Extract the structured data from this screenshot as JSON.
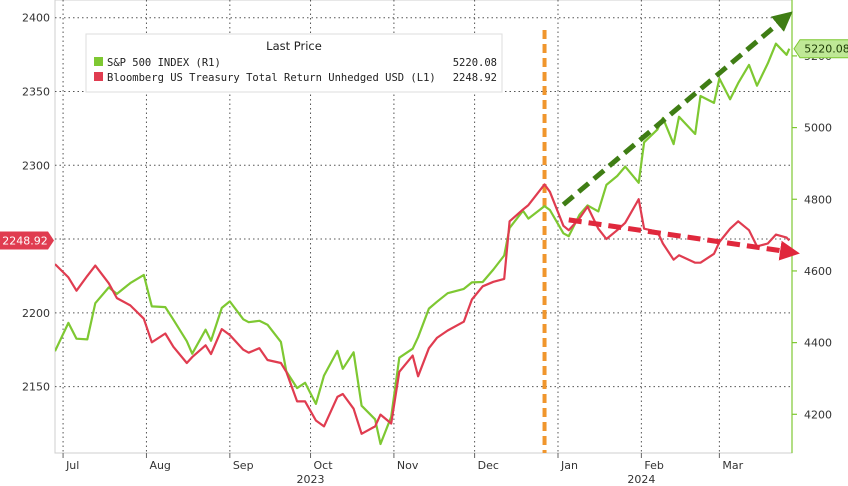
{
  "chart_data": {
    "type": "line",
    "title": "",
    "xlabel": "",
    "legend": {
      "title": "Last Price",
      "placement": "top-left",
      "entries": [
        {
          "label": "S&P 500 INDEX  (R1)",
          "value": "5220.08",
          "color": "#7ec832"
        },
        {
          "label": "Bloomberg US Treasury Total Return Unhedged USD  (L1)",
          "value": "2248.92",
          "color": "#e03c50"
        }
      ]
    },
    "x_ticks": [
      {
        "label": "Jul",
        "date": "2023-07-01"
      },
      {
        "label": "Aug",
        "date": "2023-08-01"
      },
      {
        "label": "Sep",
        "date": "2023-09-01"
      },
      {
        "label": "Oct",
        "date": "2023-10-01"
      },
      {
        "label": "Nov",
        "date": "2023-11-01"
      },
      {
        "label": "Dec",
        "date": "2023-12-01"
      },
      {
        "label": "Jan",
        "date": "2024-01-01"
      },
      {
        "label": "Feb",
        "date": "2024-02-01"
      },
      {
        "label": "Mar",
        "date": "2024-03-01"
      }
    ],
    "x_year_labels": [
      {
        "label": "2023",
        "date": "2023-10-01"
      },
      {
        "label": "2024",
        "date": "2024-02-01"
      }
    ],
    "xlim": [
      "2023-06-28",
      "2024-03-28"
    ],
    "left_axis": {
      "ylim": [
        2105,
        2412
      ],
      "ticks": [
        2150,
        2200,
        2250,
        2300,
        2350,
        2400
      ]
    },
    "right_axis": {
      "ylim": [
        4092,
        5356
      ],
      "ticks": [
        4200,
        4400,
        4600,
        4800,
        5000,
        5200
      ]
    },
    "grid": true,
    "series": [
      {
        "name": "S&P 500 INDEX",
        "axis": "right",
        "color": "#7ec832",
        "last_value": "5220.08",
        "points": [
          [
            "2023-06-28",
            4376
          ],
          [
            "2023-07-03",
            4455
          ],
          [
            "2023-07-06",
            4411
          ],
          [
            "2023-07-10",
            4409
          ],
          [
            "2023-07-13",
            4510
          ],
          [
            "2023-07-18",
            4554
          ],
          [
            "2023-07-21",
            4536
          ],
          [
            "2023-07-26",
            4566
          ],
          [
            "2023-07-31",
            4589
          ],
          [
            "2023-08-03",
            4501
          ],
          [
            "2023-08-08",
            4499
          ],
          [
            "2023-08-11",
            4464
          ],
          [
            "2023-08-16",
            4404
          ],
          [
            "2023-08-18",
            4369
          ],
          [
            "2023-08-23",
            4436
          ],
          [
            "2023-08-25",
            4405
          ],
          [
            "2023-08-29",
            4497
          ],
          [
            "2023-09-01",
            4515
          ],
          [
            "2023-09-06",
            4465
          ],
          [
            "2023-09-08",
            4457
          ],
          [
            "2023-09-12",
            4461
          ],
          [
            "2023-09-15",
            4450
          ],
          [
            "2023-09-20",
            4402
          ],
          [
            "2023-09-22",
            4320
          ],
          [
            "2023-09-26",
            4273
          ],
          [
            "2023-09-29",
            4288
          ],
          [
            "2023-10-03",
            4229
          ],
          [
            "2023-10-06",
            4308
          ],
          [
            "2023-10-11",
            4377
          ],
          [
            "2023-10-13",
            4327
          ],
          [
            "2023-10-17",
            4373
          ],
          [
            "2023-10-20",
            4224
          ],
          [
            "2023-10-25",
            4186
          ],
          [
            "2023-10-27",
            4117
          ],
          [
            "2023-10-31",
            4193
          ],
          [
            "2023-11-03",
            4358
          ],
          [
            "2023-11-08",
            4383
          ],
          [
            "2023-11-10",
            4415
          ],
          [
            "2023-11-14",
            4495
          ],
          [
            "2023-11-17",
            4514
          ],
          [
            "2023-11-21",
            4538
          ],
          [
            "2023-11-27",
            4550
          ],
          [
            "2023-11-30",
            4568
          ],
          [
            "2023-12-04",
            4569
          ],
          [
            "2023-12-08",
            4604
          ],
          [
            "2023-12-12",
            4643
          ],
          [
            "2023-12-14",
            4720
          ],
          [
            "2023-12-19",
            4768
          ],
          [
            "2023-12-21",
            4746
          ],
          [
            "2023-12-27",
            4781
          ],
          [
            "2023-12-29",
            4770
          ],
          [
            "2024-01-03",
            4705
          ],
          [
            "2024-01-05",
            4697
          ],
          [
            "2024-01-09",
            4757
          ],
          [
            "2024-01-12",
            4783
          ],
          [
            "2024-01-16",
            4766
          ],
          [
            "2024-01-19",
            4840
          ],
          [
            "2024-01-23",
            4865
          ],
          [
            "2024-01-26",
            4891
          ],
          [
            "2024-01-31",
            4846
          ],
          [
            "2024-02-02",
            4959
          ],
          [
            "2024-02-07",
            4995
          ],
          [
            "2024-02-09",
            5027
          ],
          [
            "2024-02-13",
            4954
          ],
          [
            "2024-02-15",
            5030
          ],
          [
            "2024-02-21",
            4982
          ],
          [
            "2024-02-23",
            5088
          ],
          [
            "2024-02-28",
            5069
          ],
          [
            "2024-03-01",
            5137
          ],
          [
            "2024-03-05",
            5079
          ],
          [
            "2024-03-08",
            5124
          ],
          [
            "2024-03-12",
            5175
          ],
          [
            "2024-03-15",
            5117
          ],
          [
            "2024-03-19",
            5179
          ],
          [
            "2024-03-22",
            5234
          ],
          [
            "2024-03-26",
            5203
          ],
          [
            "2024-03-27",
            5220
          ]
        ]
      },
      {
        "name": "Bloomberg US Treasury Total Return Unhedged USD",
        "axis": "left",
        "color": "#e03c50",
        "last_value": "2248.92",
        "points": [
          [
            "2023-06-28",
            2233
          ],
          [
            "2023-07-03",
            2224
          ],
          [
            "2023-07-06",
            2215
          ],
          [
            "2023-07-10",
            2225
          ],
          [
            "2023-07-13",
            2232
          ],
          [
            "2023-07-18",
            2220
          ],
          [
            "2023-07-21",
            2210
          ],
          [
            "2023-07-26",
            2205
          ],
          [
            "2023-07-31",
            2196
          ],
          [
            "2023-08-03",
            2180
          ],
          [
            "2023-08-08",
            2186
          ],
          [
            "2023-08-11",
            2177
          ],
          [
            "2023-08-16",
            2166
          ],
          [
            "2023-08-18",
            2170
          ],
          [
            "2023-08-23",
            2178
          ],
          [
            "2023-08-25",
            2172
          ],
          [
            "2023-08-29",
            2189
          ],
          [
            "2023-09-01",
            2185
          ],
          [
            "2023-09-06",
            2175
          ],
          [
            "2023-09-08",
            2173
          ],
          [
            "2023-09-12",
            2176
          ],
          [
            "2023-09-15",
            2168
          ],
          [
            "2023-09-20",
            2166
          ],
          [
            "2023-09-22",
            2160
          ],
          [
            "2023-09-26",
            2140
          ],
          [
            "2023-09-29",
            2140
          ],
          [
            "2023-10-03",
            2127
          ],
          [
            "2023-10-06",
            2123
          ],
          [
            "2023-10-11",
            2143
          ],
          [
            "2023-10-13",
            2145
          ],
          [
            "2023-10-17",
            2135
          ],
          [
            "2023-10-20",
            2118
          ],
          [
            "2023-10-25",
            2123
          ],
          [
            "2023-10-27",
            2131
          ],
          [
            "2023-10-31",
            2125
          ],
          [
            "2023-11-03",
            2160
          ],
          [
            "2023-11-08",
            2171
          ],
          [
            "2023-11-10",
            2157
          ],
          [
            "2023-11-14",
            2176
          ],
          [
            "2023-11-17",
            2183
          ],
          [
            "2023-11-21",
            2188
          ],
          [
            "2023-11-27",
            2194
          ],
          [
            "2023-11-30",
            2209
          ],
          [
            "2023-12-04",
            2218
          ],
          [
            "2023-12-08",
            2221
          ],
          [
            "2023-12-12",
            2223
          ],
          [
            "2023-12-14",
            2262
          ],
          [
            "2023-12-19",
            2270
          ],
          [
            "2023-12-21",
            2273
          ],
          [
            "2023-12-27",
            2287
          ],
          [
            "2023-12-29",
            2282
          ],
          [
            "2024-01-03",
            2259
          ],
          [
            "2024-01-05",
            2256
          ],
          [
            "2024-01-09",
            2264
          ],
          [
            "2024-01-12",
            2272
          ],
          [
            "2024-01-16",
            2257
          ],
          [
            "2024-01-19",
            2250
          ],
          [
            "2024-01-23",
            2256
          ],
          [
            "2024-01-26",
            2261
          ],
          [
            "2024-01-31",
            2277
          ],
          [
            "2024-02-02",
            2257
          ],
          [
            "2024-02-07",
            2255
          ],
          [
            "2024-02-09",
            2247
          ],
          [
            "2024-02-13",
            2236
          ],
          [
            "2024-02-15",
            2239
          ],
          [
            "2024-02-21",
            2234
          ],
          [
            "2024-02-23",
            2234
          ],
          [
            "2024-02-28",
            2240
          ],
          [
            "2024-03-01",
            2248
          ],
          [
            "2024-03-05",
            2257
          ],
          [
            "2024-03-08",
            2262
          ],
          [
            "2024-03-12",
            2256
          ],
          [
            "2024-03-15",
            2245
          ],
          [
            "2024-03-19",
            2247
          ],
          [
            "2024-03-22",
            2253
          ],
          [
            "2024-03-26",
            2251
          ],
          [
            "2024-03-27",
            2249
          ]
        ]
      }
    ],
    "annotations": [
      {
        "kind": "vertical-dashed-line",
        "date": "2023-12-27",
        "color": "#f0962d"
      },
      {
        "kind": "dashed-arrow",
        "axis": "right",
        "from": [
          "2024-01-03",
          4785
        ],
        "to": [
          "2024-03-26",
          5310
        ],
        "color": "#3f7d14"
      },
      {
        "kind": "dashed-arrow",
        "axis": "left",
        "from": [
          "2024-01-05",
          2263
        ],
        "to": [
          "2024-03-28",
          2241
        ],
        "color": "#e0283c"
      }
    ]
  }
}
